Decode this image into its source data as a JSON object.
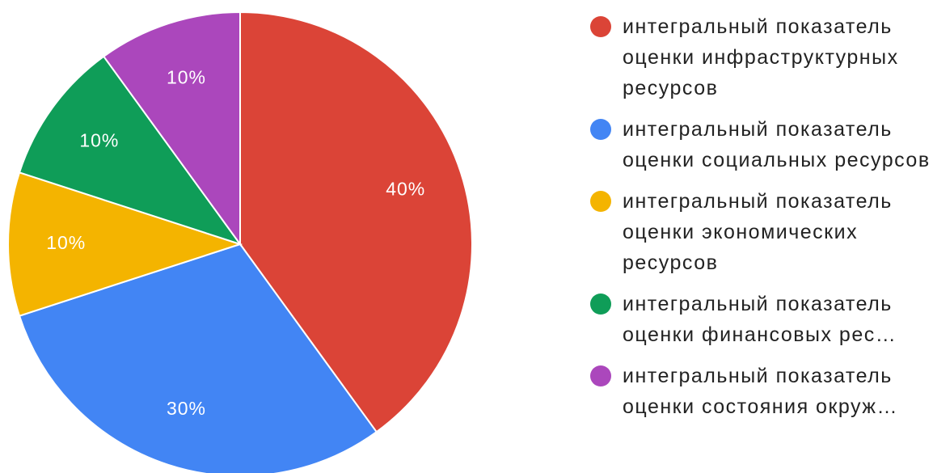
{
  "chart_data": {
    "type": "pie",
    "categories": [
      "интегральный показатель оценки инфраструктурных ресурсов",
      "интегральный показатель оценки социальных ресурсов",
      "интегральный показатель оценки экономических ресурсов",
      "интегральный показатель оценки финансовых рес…",
      "интегральный показатель оценки состояния окруж…"
    ],
    "values": [
      40,
      30,
      10,
      10,
      10
    ],
    "value_labels": [
      "40%",
      "30%",
      "10%",
      "10%",
      "10%"
    ],
    "colors": [
      "#db4437",
      "#4285f4",
      "#f4b400",
      "#0f9d58",
      "#ab47bc"
    ],
    "legend": "right"
  }
}
